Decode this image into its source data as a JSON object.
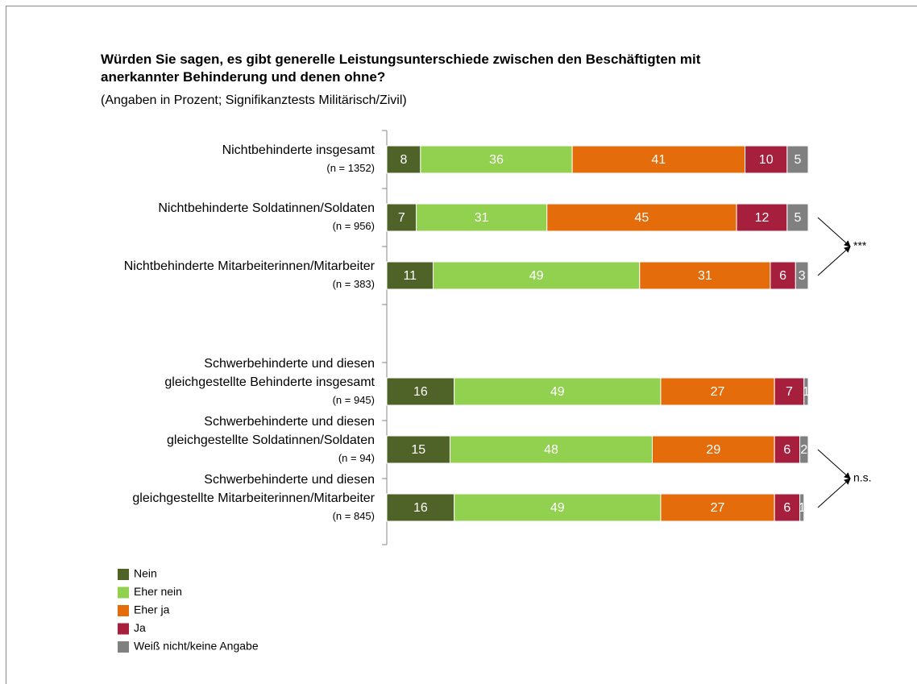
{
  "chart_data": {
    "type": "stacked-barh",
    "title": "Würden Sie sagen, es gibt generelle Leistungsunterschiede zwischen den Beschäftigten mit\nanerkannter Behinderung und denen ohne?",
    "subtitle": "(Angaben in Prozent; Signifikanztests Militärisch/Zivil)",
    "categories": [
      "Nichtbehinderte insgesamt",
      "Nichtbehinderte Soldatinnen/Soldaten",
      "Nichtbehinderte Mitarbeiterinnen/Mitarbeiter",
      null,
      "Schwerbehinderte und diesen\ngleichgestellte Behinderte insgesamt",
      "Schwerbehinderte und diesen\ngleichgestellte Soldatinnen/Soldaten",
      "Schwerbehinderte und diesen\ngleichgestellte Mitarbeiterinnen/Mitarbeiter"
    ],
    "sample_sizes": [
      "(n = 1352)",
      "(n = 956)",
      "(n = 383)",
      null,
      "(n = 945)",
      "(n = 94)",
      "(n = 845)"
    ],
    "series": [
      {
        "name": "Nein",
        "color": "#4f6228",
        "values": [
          8,
          7,
          11,
          null,
          16,
          15,
          16
        ]
      },
      {
        "name": "Eher nein",
        "color": "#92d050",
        "values": [
          36,
          31,
          49,
          null,
          49,
          48,
          49
        ]
      },
      {
        "name": "Eher ja",
        "color": "#e46c0a",
        "values": [
          41,
          45,
          31,
          null,
          27,
          29,
          27
        ]
      },
      {
        "name": "Ja",
        "color": "#a6203e",
        "values": [
          10,
          12,
          6,
          null,
          7,
          6,
          6
        ]
      },
      {
        "name": "Weiß nicht/keine Angabe",
        "color": "#808080",
        "values": [
          5,
          5,
          3,
          null,
          1,
          2,
          1
        ]
      }
    ],
    "xlim": [
      0,
      100
    ],
    "annotations": [
      "***",
      "n.s."
    ]
  }
}
